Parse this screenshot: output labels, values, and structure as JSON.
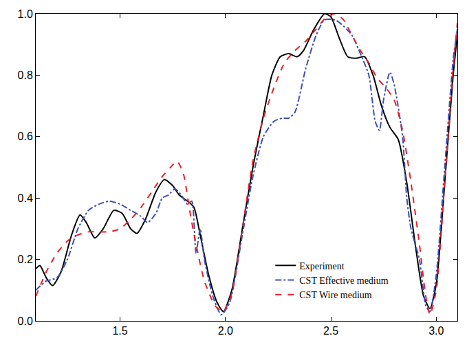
{
  "chart_data": {
    "type": "line",
    "xlim": [
      1.1,
      3.1
    ],
    "xticks": [
      {
        "value": 1.5,
        "label": "1.5"
      },
      {
        "value": 2.0,
        "label": "2.0"
      },
      {
        "value": 2.5,
        "label": "2.5"
      },
      {
        "value": 3.0,
        "label": "3.0"
      }
    ],
    "ylim": [
      0.0,
      1.0
    ],
    "yticks": [
      {
        "value": 0.0,
        "label": "0.0"
      },
      0.2,
      0.4,
      0.6,
      0.8,
      {
        "value": 1.0,
        "label": "1.0"
      }
    ],
    "grid": false,
    "legend": "lower right",
    "series": [
      {
        "name": "Experiment",
        "color": "#000000",
        "line_style": "solid",
        "x": [
          1.1,
          1.12,
          1.15,
          1.18,
          1.22,
          1.27,
          1.31,
          1.34,
          1.38,
          1.42,
          1.47,
          1.51,
          1.55,
          1.58,
          1.62,
          1.67,
          1.71,
          1.75,
          1.78,
          1.82,
          1.85,
          1.88,
          1.92,
          1.96,
          1.99,
          2.03,
          2.08,
          2.13,
          2.18,
          2.22,
          2.26,
          2.3,
          2.34,
          2.37,
          2.42,
          2.47,
          2.5,
          2.54,
          2.58,
          2.62,
          2.66,
          2.7,
          2.74,
          2.78,
          2.82,
          2.86,
          2.9,
          2.94,
          2.97,
          3.0,
          3.04,
          3.08,
          3.1
        ],
        "values": [
          0.17,
          0.18,
          0.14,
          0.115,
          0.16,
          0.28,
          0.345,
          0.32,
          0.27,
          0.3,
          0.36,
          0.35,
          0.3,
          0.285,
          0.33,
          0.42,
          0.46,
          0.44,
          0.41,
          0.39,
          0.37,
          0.28,
          0.15,
          0.06,
          0.03,
          0.1,
          0.3,
          0.5,
          0.67,
          0.8,
          0.86,
          0.87,
          0.86,
          0.88,
          0.95,
          1.0,
          0.99,
          0.92,
          0.86,
          0.855,
          0.86,
          0.8,
          0.7,
          0.63,
          0.59,
          0.45,
          0.25,
          0.08,
          0.04,
          0.12,
          0.45,
          0.8,
          0.93
        ]
      },
      {
        "name": "CST Effective medium",
        "color": "#3b4fb8",
        "line_style": "dashdot",
        "x": [
          1.1,
          1.15,
          1.2,
          1.25,
          1.3,
          1.35,
          1.4,
          1.45,
          1.5,
          1.55,
          1.6,
          1.63,
          1.67,
          1.7,
          1.73,
          1.76,
          1.79,
          1.82,
          1.84,
          1.86,
          1.88,
          1.9,
          1.94,
          1.98,
          2.02,
          2.08,
          2.13,
          2.18,
          2.23,
          2.27,
          2.3,
          2.33,
          2.38,
          2.43,
          2.47,
          2.52,
          2.56,
          2.6,
          2.64,
          2.68,
          2.71,
          2.73,
          2.75,
          2.78,
          2.8,
          2.84,
          2.86,
          2.88,
          2.92,
          2.95,
          2.97,
          3.0,
          3.04,
          3.08,
          3.1
        ],
        "values": [
          0.1,
          0.13,
          0.14,
          0.2,
          0.3,
          0.36,
          0.38,
          0.39,
          0.38,
          0.36,
          0.34,
          0.32,
          0.35,
          0.4,
          0.41,
          0.43,
          0.41,
          0.38,
          0.39,
          0.22,
          0.3,
          0.2,
          0.08,
          0.02,
          0.06,
          0.28,
          0.47,
          0.6,
          0.65,
          0.66,
          0.66,
          0.68,
          0.82,
          0.93,
          0.98,
          0.98,
          0.96,
          0.93,
          0.87,
          0.8,
          0.65,
          0.62,
          0.72,
          0.81,
          0.77,
          0.6,
          0.4,
          0.3,
          0.2,
          0.05,
          0.03,
          0.15,
          0.5,
          0.85,
          0.95
        ]
      },
      {
        "name": "CST Wire medium",
        "color": "#e8202a",
        "line_style": "dash",
        "x": [
          1.1,
          1.15,
          1.2,
          1.25,
          1.3,
          1.35,
          1.4,
          1.45,
          1.5,
          1.55,
          1.6,
          1.65,
          1.7,
          1.74,
          1.77,
          1.8,
          1.83,
          1.86,
          1.9,
          1.95,
          1.99,
          2.03,
          2.08,
          2.13,
          2.18,
          2.23,
          2.28,
          2.33,
          2.38,
          2.43,
          2.48,
          2.52,
          2.56,
          2.6,
          2.64,
          2.68,
          2.72,
          2.76,
          2.8,
          2.84,
          2.88,
          2.92,
          2.95,
          2.97,
          3.0,
          3.04,
          3.08,
          3.1
        ],
        "values": [
          0.08,
          0.16,
          0.22,
          0.26,
          0.28,
          0.29,
          0.29,
          0.29,
          0.3,
          0.33,
          0.37,
          0.42,
          0.47,
          0.5,
          0.52,
          0.48,
          0.36,
          0.25,
          0.13,
          0.05,
          0.03,
          0.09,
          0.3,
          0.52,
          0.66,
          0.76,
          0.84,
          0.88,
          0.91,
          0.95,
          0.99,
          1.0,
          0.98,
          0.93,
          0.88,
          0.84,
          0.79,
          0.76,
          0.72,
          0.62,
          0.45,
          0.25,
          0.08,
          0.02,
          0.1,
          0.45,
          0.82,
          0.97
        ]
      }
    ]
  }
}
